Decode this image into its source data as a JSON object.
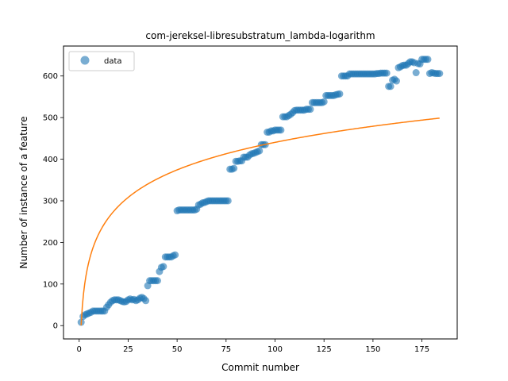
{
  "chart_data": {
    "type": "scatter",
    "title": "com-jereksel-libresubstratum_lambda-logarithm",
    "xlabel": "Commit number",
    "ylabel": "Number of instance of a feature",
    "xlim": [
      -8,
      193
    ],
    "ylim": [
      -32,
      672
    ],
    "xticks": [
      0,
      25,
      50,
      75,
      100,
      125,
      150,
      175
    ],
    "yticks": [
      0,
      100,
      200,
      300,
      400,
      500,
      600
    ],
    "grid": false,
    "legend": {
      "position": "top-left",
      "entries": [
        "data"
      ]
    },
    "colors": {
      "data": "#1f77b4",
      "fit": "#ff7f0e"
    },
    "series": [
      {
        "name": "data",
        "kind": "scatter",
        "points": [
          [
            1,
            8
          ],
          [
            2,
            22
          ],
          [
            3,
            26
          ],
          [
            4,
            28
          ],
          [
            5,
            30
          ],
          [
            6,
            32
          ],
          [
            7,
            35
          ],
          [
            8,
            35
          ],
          [
            9,
            35
          ],
          [
            10,
            35
          ],
          [
            11,
            35
          ],
          [
            12,
            35
          ],
          [
            13,
            35
          ],
          [
            14,
            44
          ],
          [
            15,
            50
          ],
          [
            16,
            56
          ],
          [
            17,
            60
          ],
          [
            18,
            62
          ],
          [
            19,
            62
          ],
          [
            20,
            62
          ],
          [
            21,
            60
          ],
          [
            22,
            58
          ],
          [
            23,
            57
          ],
          [
            24,
            58
          ],
          [
            25,
            62
          ],
          [
            26,
            64
          ],
          [
            27,
            62
          ],
          [
            28,
            63
          ],
          [
            29,
            60
          ],
          [
            30,
            62
          ],
          [
            31,
            66
          ],
          [
            32,
            68
          ],
          [
            33,
            65
          ],
          [
            34,
            60
          ],
          [
            35,
            96
          ],
          [
            36,
            108
          ],
          [
            37,
            108
          ],
          [
            38,
            108
          ],
          [
            39,
            108
          ],
          [
            40,
            108
          ],
          [
            41,
            130
          ],
          [
            42,
            140
          ],
          [
            43,
            142
          ],
          [
            44,
            165
          ],
          [
            45,
            165
          ],
          [
            46,
            165
          ],
          [
            47,
            165
          ],
          [
            48,
            168
          ],
          [
            49,
            170
          ],
          [
            50,
            276
          ],
          [
            51,
            278
          ],
          [
            52,
            278
          ],
          [
            53,
            278
          ],
          [
            54,
            278
          ],
          [
            55,
            278
          ],
          [
            56,
            278
          ],
          [
            57,
            278
          ],
          [
            58,
            278
          ],
          [
            59,
            278
          ],
          [
            60,
            280
          ],
          [
            61,
            290
          ],
          [
            62,
            292
          ],
          [
            63,
            295
          ],
          [
            64,
            296
          ],
          [
            65,
            298
          ],
          [
            66,
            300
          ],
          [
            67,
            300
          ],
          [
            68,
            300
          ],
          [
            69,
            300
          ],
          [
            70,
            300
          ],
          [
            71,
            300
          ],
          [
            72,
            300
          ],
          [
            73,
            300
          ],
          [
            74,
            300
          ],
          [
            75,
            300
          ],
          [
            76,
            300
          ],
          [
            77,
            376
          ],
          [
            78,
            376
          ],
          [
            79,
            378
          ],
          [
            80,
            395
          ],
          [
            81,
            395
          ],
          [
            82,
            396
          ],
          [
            83,
            396
          ],
          [
            84,
            405
          ],
          [
            85,
            405
          ],
          [
            86,
            405
          ],
          [
            87,
            410
          ],
          [
            88,
            413
          ],
          [
            89,
            414
          ],
          [
            90,
            416
          ],
          [
            91,
            418
          ],
          [
            92,
            420
          ],
          [
            93,
            435
          ],
          [
            94,
            435
          ],
          [
            95,
            435
          ],
          [
            96,
            465
          ],
          [
            97,
            465
          ],
          [
            98,
            468
          ],
          [
            99,
            468
          ],
          [
            100,
            470
          ],
          [
            101,
            470
          ],
          [
            102,
            470
          ],
          [
            103,
            470
          ],
          [
            104,
            502
          ],
          [
            105,
            502
          ],
          [
            106,
            502
          ],
          [
            107,
            505
          ],
          [
            108,
            508
          ],
          [
            109,
            512
          ],
          [
            110,
            517
          ],
          [
            111,
            518
          ],
          [
            112,
            518
          ],
          [
            113,
            518
          ],
          [
            114,
            518
          ],
          [
            115,
            518
          ],
          [
            116,
            520
          ],
          [
            117,
            520
          ],
          [
            118,
            520
          ],
          [
            119,
            536
          ],
          [
            120,
            536
          ],
          [
            121,
            536
          ],
          [
            122,
            536
          ],
          [
            123,
            536
          ],
          [
            124,
            536
          ],
          [
            125,
            538
          ],
          [
            126,
            553
          ],
          [
            127,
            553
          ],
          [
            128,
            553
          ],
          [
            129,
            553
          ],
          [
            130,
            553
          ],
          [
            131,
            555
          ],
          [
            132,
            556
          ],
          [
            133,
            557
          ],
          [
            134,
            600
          ],
          [
            135,
            600
          ],
          [
            136,
            600
          ],
          [
            137,
            600
          ],
          [
            138,
            605
          ],
          [
            139,
            605
          ],
          [
            140,
            605
          ],
          [
            141,
            605
          ],
          [
            142,
            605
          ],
          [
            143,
            605
          ],
          [
            144,
            605
          ],
          [
            145,
            605
          ],
          [
            146,
            605
          ],
          [
            147,
            605
          ],
          [
            148,
            605
          ],
          [
            149,
            605
          ],
          [
            150,
            605
          ],
          [
            151,
            605
          ],
          [
            152,
            606
          ],
          [
            153,
            606
          ],
          [
            154,
            607
          ],
          [
            155,
            607
          ],
          [
            156,
            607
          ],
          [
            157,
            607
          ],
          [
            158,
            575
          ],
          [
            159,
            575
          ],
          [
            160,
            590
          ],
          [
            161,
            592
          ],
          [
            162,
            588
          ],
          [
            163,
            620
          ],
          [
            164,
            622
          ],
          [
            165,
            625
          ],
          [
            166,
            626
          ],
          [
            167,
            626
          ],
          [
            168,
            630
          ],
          [
            169,
            634
          ],
          [
            170,
            634
          ],
          [
            171,
            632
          ],
          [
            172,
            608
          ],
          [
            173,
            630
          ],
          [
            174,
            629
          ],
          [
            175,
            640
          ],
          [
            176,
            640
          ],
          [
            177,
            640
          ],
          [
            178,
            640
          ],
          [
            179,
            606
          ],
          [
            180,
            608
          ],
          [
            181,
            607
          ],
          [
            182,
            606
          ],
          [
            183,
            606
          ],
          [
            184,
            606
          ]
        ]
      },
      {
        "name": "",
        "kind": "line",
        "function": "y = 95.5 * ln(x) + 0.7",
        "x_range": [
          1,
          184
        ]
      }
    ]
  }
}
